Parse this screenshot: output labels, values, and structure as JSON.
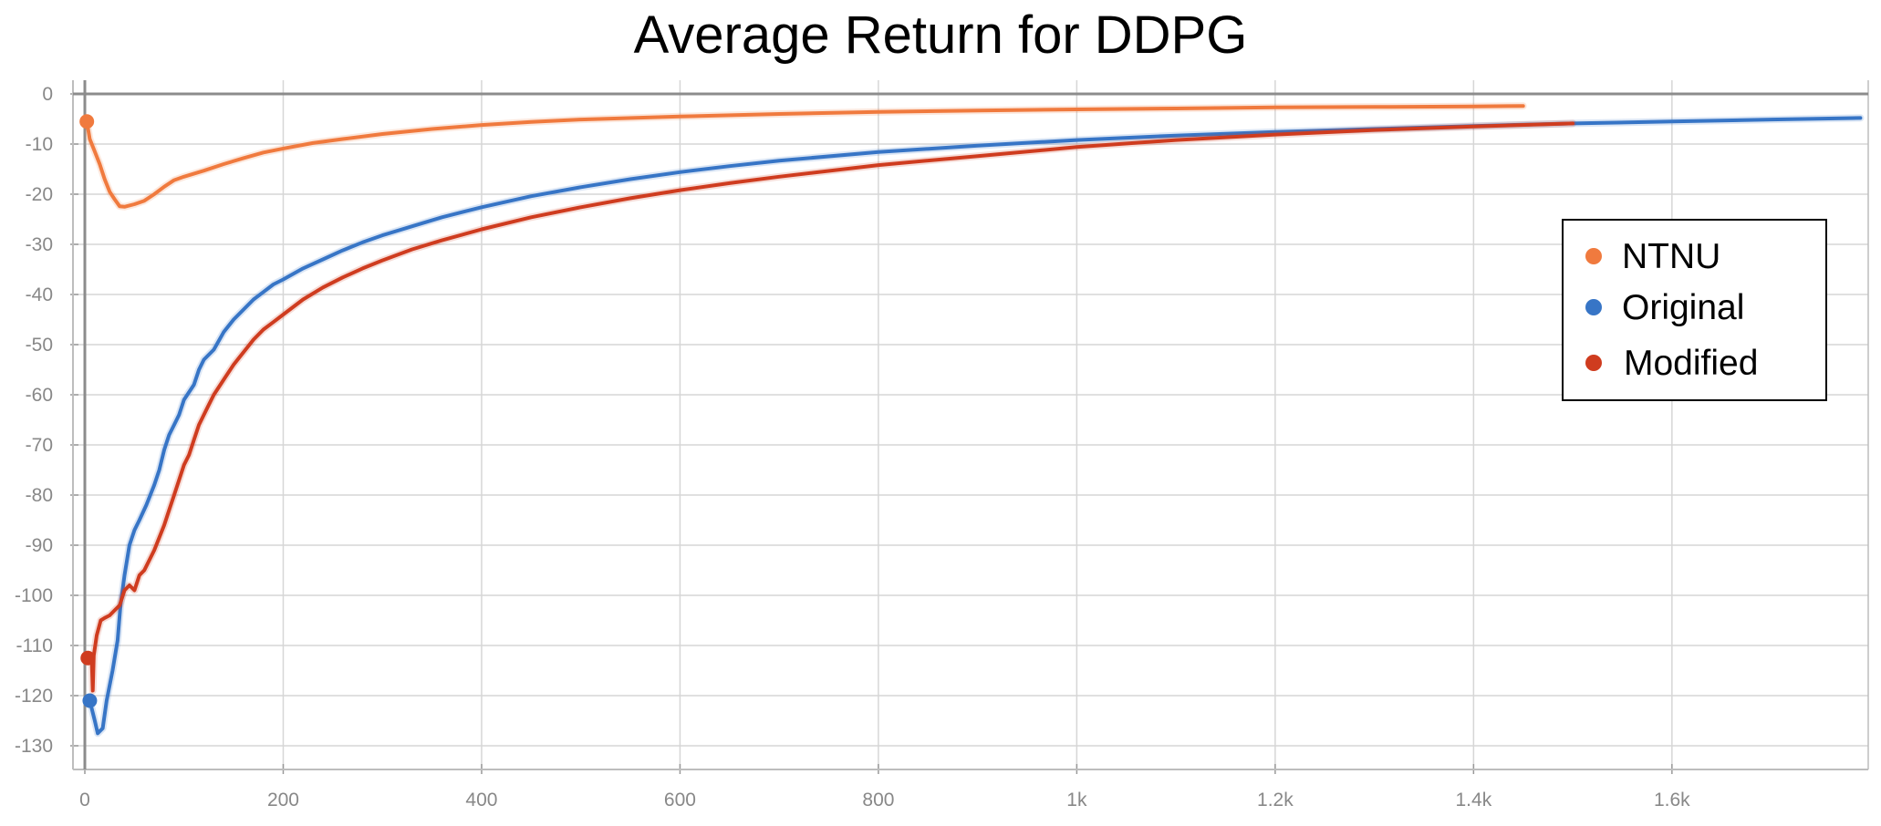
{
  "chart_data": {
    "type": "line",
    "title": "Average Return for DDPG",
    "xlabel": "",
    "ylabel": "",
    "xlim": [
      0,
      1790
    ],
    "ylim": [
      -135,
      0
    ],
    "grid": true,
    "legend": {
      "placement": "top-right",
      "entries": [
        "NTNU",
        "Original",
        "Modified"
      ]
    },
    "x_ticks": [
      {
        "value": 0,
        "label": "0"
      },
      {
        "value": 200,
        "label": "200"
      },
      {
        "value": 400,
        "label": "400"
      },
      {
        "value": 600,
        "label": "600"
      },
      {
        "value": 800,
        "label": "800"
      },
      {
        "value": 1000,
        "label": "1k"
      },
      {
        "value": 1200,
        "label": "1.2k"
      },
      {
        "value": 1400,
        "label": "1.4k"
      },
      {
        "value": 1600,
        "label": "1.6k"
      }
    ],
    "y_ticks": [
      {
        "value": 0,
        "label": "0"
      },
      {
        "value": -10,
        "label": "-10"
      },
      {
        "value": -20,
        "label": "-20"
      },
      {
        "value": -30,
        "label": "-30"
      },
      {
        "value": -40,
        "label": "-40"
      },
      {
        "value": -50,
        "label": "-50"
      },
      {
        "value": -60,
        "label": "-60"
      },
      {
        "value": -70,
        "label": "-70"
      },
      {
        "value": -80,
        "label": "-80"
      },
      {
        "value": -90,
        "label": "-90"
      },
      {
        "value": -100,
        "label": "-100"
      },
      {
        "value": -110,
        "label": "-110"
      },
      {
        "value": -120,
        "label": "-120"
      },
      {
        "value": -130,
        "label": "-130"
      }
    ],
    "series": [
      {
        "name": "NTNU",
        "color": "#f07a3e",
        "marker": {
          "x": 2,
          "y": -5.5
        },
        "points": [
          [
            2,
            -5.5
          ],
          [
            5,
            -9
          ],
          [
            10,
            -11.5
          ],
          [
            15,
            -14
          ],
          [
            20,
            -17
          ],
          [
            25,
            -19.5
          ],
          [
            30,
            -21
          ],
          [
            35,
            -22.4
          ],
          [
            40,
            -22.5
          ],
          [
            50,
            -22
          ],
          [
            60,
            -21.3
          ],
          [
            70,
            -20
          ],
          [
            80,
            -18.5
          ],
          [
            90,
            -17.2
          ],
          [
            100,
            -16.5
          ],
          [
            120,
            -15.3
          ],
          [
            140,
            -14
          ],
          [
            160,
            -12.8
          ],
          [
            180,
            -11.7
          ],
          [
            200,
            -10.9
          ],
          [
            230,
            -9.8
          ],
          [
            260,
            -9
          ],
          [
            300,
            -8
          ],
          [
            350,
            -7
          ],
          [
            400,
            -6.2
          ],
          [
            450,
            -5.6
          ],
          [
            500,
            -5.1
          ],
          [
            600,
            -4.5
          ],
          [
            700,
            -4
          ],
          [
            800,
            -3.6
          ],
          [
            900,
            -3.3
          ],
          [
            1000,
            -3.1
          ],
          [
            1100,
            -2.9
          ],
          [
            1200,
            -2.7
          ],
          [
            1300,
            -2.6
          ],
          [
            1400,
            -2.5
          ],
          [
            1450,
            -2.4
          ]
        ]
      },
      {
        "name": "Original",
        "color": "#3775c6",
        "marker": {
          "x": 5,
          "y": -121
        },
        "points": [
          [
            5,
            -121
          ],
          [
            10,
            -125
          ],
          [
            13,
            -127.5
          ],
          [
            18,
            -126.5
          ],
          [
            22,
            -121
          ],
          [
            28,
            -115
          ],
          [
            33,
            -109
          ],
          [
            36,
            -102
          ],
          [
            40,
            -96
          ],
          [
            45,
            -90
          ],
          [
            50,
            -87
          ],
          [
            55,
            -85
          ],
          [
            62,
            -82
          ],
          [
            70,
            -78
          ],
          [
            75,
            -75
          ],
          [
            80,
            -71
          ],
          [
            85,
            -68
          ],
          [
            90,
            -66
          ],
          [
            95,
            -64
          ],
          [
            100,
            -61
          ],
          [
            110,
            -58
          ],
          [
            115,
            -55
          ],
          [
            120,
            -53
          ],
          [
            130,
            -51
          ],
          [
            140,
            -47.5
          ],
          [
            150,
            -45
          ],
          [
            160,
            -43
          ],
          [
            170,
            -41
          ],
          [
            180,
            -39.5
          ],
          [
            190,
            -38
          ],
          [
            200,
            -37
          ],
          [
            220,
            -34.8
          ],
          [
            240,
            -33
          ],
          [
            260,
            -31.2
          ],
          [
            280,
            -29.6
          ],
          [
            300,
            -28.2
          ],
          [
            330,
            -26.4
          ],
          [
            360,
            -24.6
          ],
          [
            400,
            -22.6
          ],
          [
            450,
            -20.4
          ],
          [
            500,
            -18.6
          ],
          [
            550,
            -17
          ],
          [
            600,
            -15.6
          ],
          [
            650,
            -14.4
          ],
          [
            700,
            -13.3
          ],
          [
            800,
            -11.6
          ],
          [
            900,
            -10.3
          ],
          [
            1000,
            -9.2
          ],
          [
            1100,
            -8.3
          ],
          [
            1200,
            -7.6
          ],
          [
            1300,
            -7
          ],
          [
            1400,
            -6.4
          ],
          [
            1500,
            -5.9
          ],
          [
            1600,
            -5.5
          ],
          [
            1700,
            -5.1
          ],
          [
            1790,
            -4.8
          ]
        ]
      },
      {
        "name": "Modified",
        "color": "#cf3c1f",
        "marker": {
          "x": 3,
          "y": -112.5
        },
        "points": [
          [
            3,
            -112.5
          ],
          [
            5,
            -112
          ],
          [
            7,
            -113
          ],
          [
            8,
            -119
          ],
          [
            9,
            -112
          ],
          [
            12,
            -108
          ],
          [
            16,
            -105
          ],
          [
            20,
            -104.5
          ],
          [
            25,
            -104
          ],
          [
            30,
            -103
          ],
          [
            35,
            -102
          ],
          [
            40,
            -99
          ],
          [
            45,
            -98
          ],
          [
            50,
            -99
          ],
          [
            55,
            -96
          ],
          [
            60,
            -95
          ],
          [
            70,
            -91
          ],
          [
            80,
            -86
          ],
          [
            85,
            -83
          ],
          [
            90,
            -80
          ],
          [
            95,
            -77
          ],
          [
            100,
            -74
          ],
          [
            105,
            -72
          ],
          [
            110,
            -69
          ],
          [
            115,
            -66
          ],
          [
            120,
            -64
          ],
          [
            125,
            -62
          ],
          [
            130,
            -60
          ],
          [
            140,
            -57
          ],
          [
            150,
            -54
          ],
          [
            160,
            -51.5
          ],
          [
            170,
            -49
          ],
          [
            180,
            -47
          ],
          [
            190,
            -45.5
          ],
          [
            200,
            -44
          ],
          [
            220,
            -41
          ],
          [
            240,
            -38.6
          ],
          [
            260,
            -36.6
          ],
          [
            280,
            -34.8
          ],
          [
            300,
            -33.2
          ],
          [
            330,
            -31
          ],
          [
            360,
            -29.2
          ],
          [
            400,
            -27
          ],
          [
            450,
            -24.6
          ],
          [
            500,
            -22.6
          ],
          [
            550,
            -20.8
          ],
          [
            600,
            -19.2
          ],
          [
            650,
            -17.8
          ],
          [
            700,
            -16.5
          ],
          [
            800,
            -14.2
          ],
          [
            900,
            -12.4
          ],
          [
            1000,
            -10.6
          ],
          [
            1100,
            -9.2
          ],
          [
            1200,
            -8.1
          ],
          [
            1300,
            -7.2
          ],
          [
            1400,
            -6.5
          ],
          [
            1500,
            -5.9
          ]
        ]
      }
    ]
  }
}
